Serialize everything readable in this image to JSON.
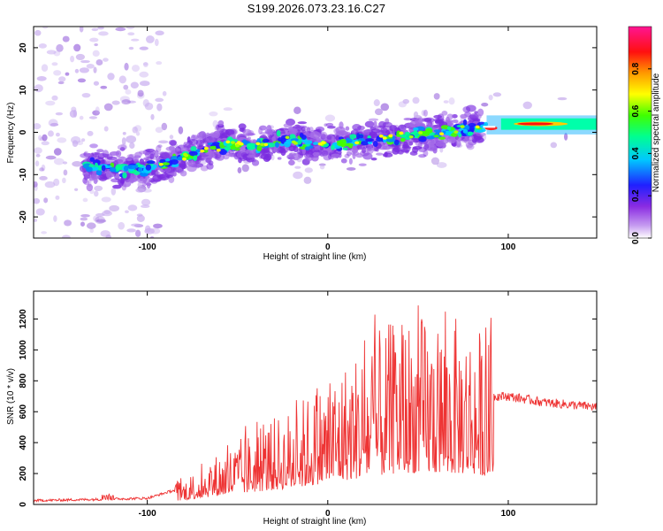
{
  "title": "S199.2026.073.23.16.C27",
  "chart_data": [
    {
      "type": "heatmap",
      "name": "spectrogram",
      "xlabel": "Height of straight line (km)",
      "ylabel": "Frequency (Hz)",
      "xlim": [
        -163,
        149
      ],
      "ylim": [
        -25,
        25
      ],
      "xticks": [
        -100,
        0,
        100
      ],
      "yticks": [
        -20,
        -10,
        0,
        10,
        20
      ],
      "colorbar": {
        "label": "Normalized spectral amplitude",
        "range": [
          0,
          1
        ],
        "ticks": [
          "0.0",
          "0.2",
          "0.4",
          "0.6",
          "0.8"
        ],
        "colors": [
          "#ffffff",
          "#8a2be2",
          "#0000ff",
          "#00ffff",
          "#00ff00",
          "#ffff00",
          "#ff7f00",
          "#ff0000",
          "#ff1493"
        ]
      },
      "ridge": [
        {
          "x": -130,
          "freq": -8
        },
        {
          "x": -100,
          "freq": -9
        },
        {
          "x": -80,
          "freq": -6
        },
        {
          "x": -60,
          "freq": -3
        },
        {
          "x": -40,
          "freq": -3
        },
        {
          "x": -20,
          "freq": -2
        },
        {
          "x": 0,
          "freq": -3
        },
        {
          "x": 20,
          "freq": -2
        },
        {
          "x": 40,
          "freq": -1
        },
        {
          "x": 60,
          "freq": 0
        },
        {
          "x": 85,
          "freq": 1
        },
        {
          "x": 100,
          "freq": 2
        },
        {
          "x": 120,
          "freq": 2
        },
        {
          "x": 149,
          "freq": 2
        }
      ]
    },
    {
      "type": "line",
      "name": "snr",
      "color": "#ee3333",
      "xlabel": "Height of straight line (km)",
      "ylabel": "SNR (10 * v/v)",
      "xlim": [
        -163,
        149
      ],
      "ylim": [
        0,
        1380
      ],
      "xticks": [
        -100,
        0,
        100
      ],
      "yticks": [
        0,
        200,
        400,
        600,
        800,
        1000,
        1200
      ],
      "envelope": {
        "x": [
          -163,
          -120,
          -100,
          -80,
          -60,
          -40,
          -20,
          0,
          20,
          40,
          60,
          80,
          92,
          95,
          100,
          120,
          149
        ],
        "y": [
          25,
          35,
          40,
          110,
          230,
          330,
          420,
          560,
          700,
          820,
          820,
          800,
          700,
          700,
          700,
          660,
          630
        ]
      }
    }
  ]
}
